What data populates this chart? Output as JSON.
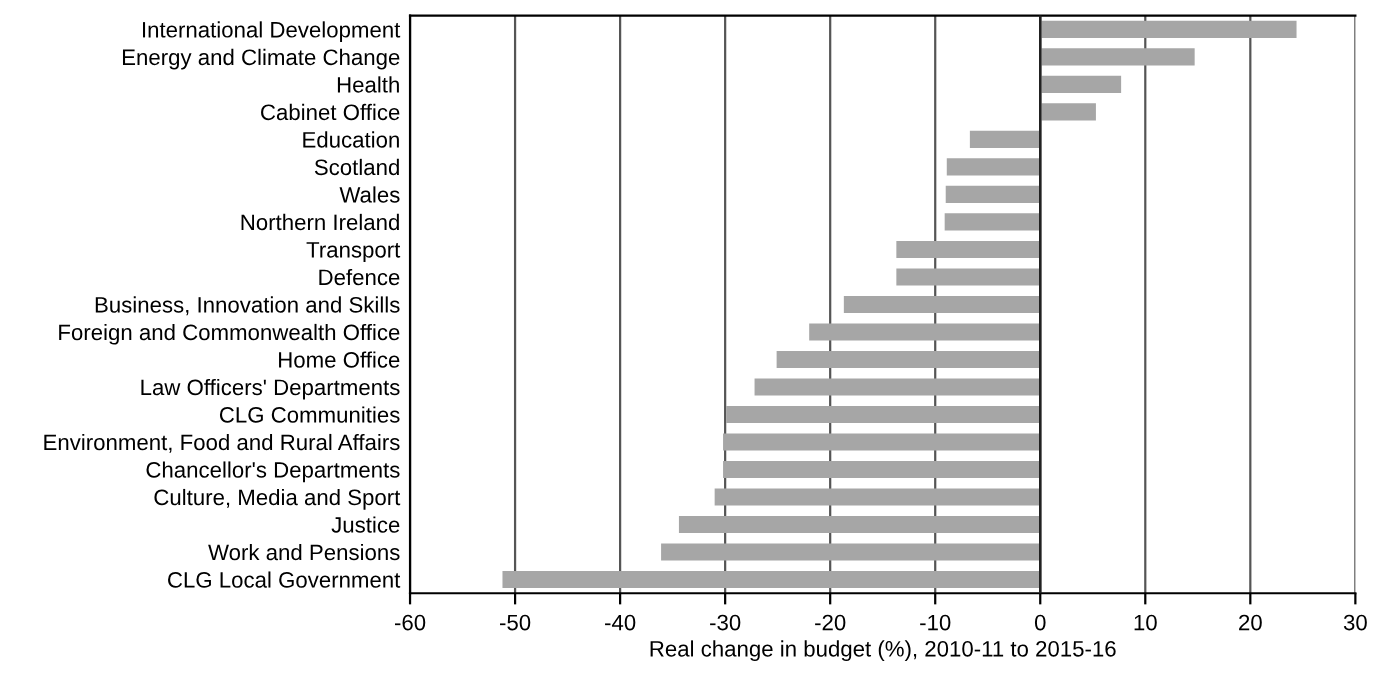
{
  "chart_data": {
    "type": "bar",
    "orientation": "horizontal",
    "xlabel": "Real change in budget (%), 2010-11 to 2015-16",
    "categories": [
      "International Development",
      "Energy and Climate Change",
      "Health",
      "Cabinet Office",
      "Education",
      "Scotland",
      "Wales",
      "Northern Ireland",
      "Transport",
      "Defence",
      "Business, Innovation and Skills",
      "Foreign and Commonwealth Office",
      "Home Office",
      "Law Officers' Departments",
      "CLG Communities",
      "Environment, Food and Rural Affairs",
      "Chancellor's Departments",
      "Culture, Media and Sport",
      "Justice",
      "Work and Pensions",
      "CLG Local Government"
    ],
    "values": [
      24.4,
      14.7,
      7.7,
      5.3,
      -6.7,
      -8.9,
      -9.0,
      -9.1,
      -13.7,
      -13.7,
      -18.7,
      -22.0,
      -25.1,
      -27.2,
      -29.9,
      -30.2,
      -30.2,
      -31.0,
      -34.4,
      -36.1,
      -51.2
    ],
    "color": "#a6a6a6",
    "xlim": [
      -60,
      30
    ],
    "xticks": [
      -60,
      -50,
      -40,
      -30,
      -20,
      -10,
      0,
      10,
      20,
      30
    ],
    "grid": "x",
    "legend": false
  }
}
